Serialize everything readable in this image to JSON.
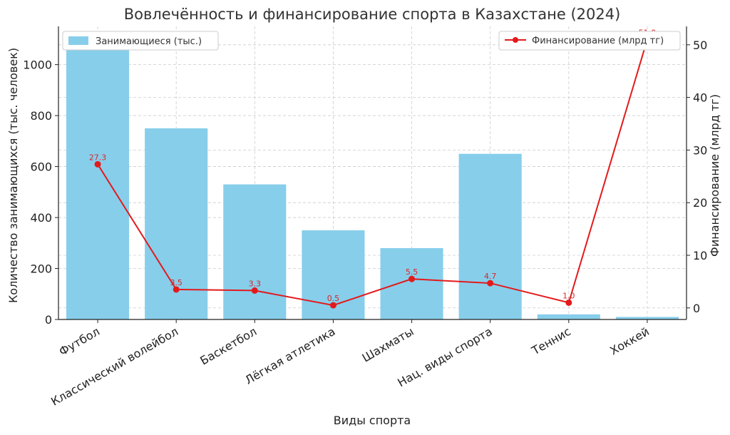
{
  "chart_data": {
    "type": "bar",
    "title": "Вовлечённость и финансирование спорта в Казахстане (2024)",
    "xlabel": "Виды спорта",
    "ylabel": "Количество занимающихся (тыс. человек)",
    "y2label": "Финансирование (млрд тг)",
    "categories": [
      "Футбол",
      "Классический волейбол",
      "Баскетбол",
      "Лёгкая атлетика",
      "Шахматы",
      "Нац. виды спорта",
      "Теннис",
      "Хоккей"
    ],
    "series": [
      {
        "name": "Занимающиеся (тыс.)",
        "type": "bar",
        "axis": "left",
        "values": [
          1100,
          750,
          530,
          350,
          280,
          650,
          20,
          10
        ]
      },
      {
        "name": "Финансирование (млрд тг)",
        "type": "line",
        "axis": "right",
        "values": [
          27.3,
          3.5,
          3.3,
          0.5,
          5.5,
          4.7,
          1.0,
          51.0
        ],
        "data_labels": [
          "27.3",
          "3.5",
          "3.3",
          "0.5",
          "5.5",
          "4.7",
          "1.0",
          "51.0"
        ]
      }
    ],
    "y_ticks": [
      "0",
      "200",
      "400",
      "600",
      "800",
      "1000"
    ],
    "y2_ticks": [
      "0",
      "10",
      "20",
      "30",
      "40",
      "50"
    ],
    "ylim": [
      0,
      1150
    ],
    "y2lim": [
      -2.2,
      53.5
    ],
    "grid": true,
    "legend_bar_placement": "top-left",
    "legend_line_placement": "top-right",
    "colors": {
      "bar": "#87ceeb",
      "line": "#e31a1c",
      "label": "#d62728"
    }
  }
}
